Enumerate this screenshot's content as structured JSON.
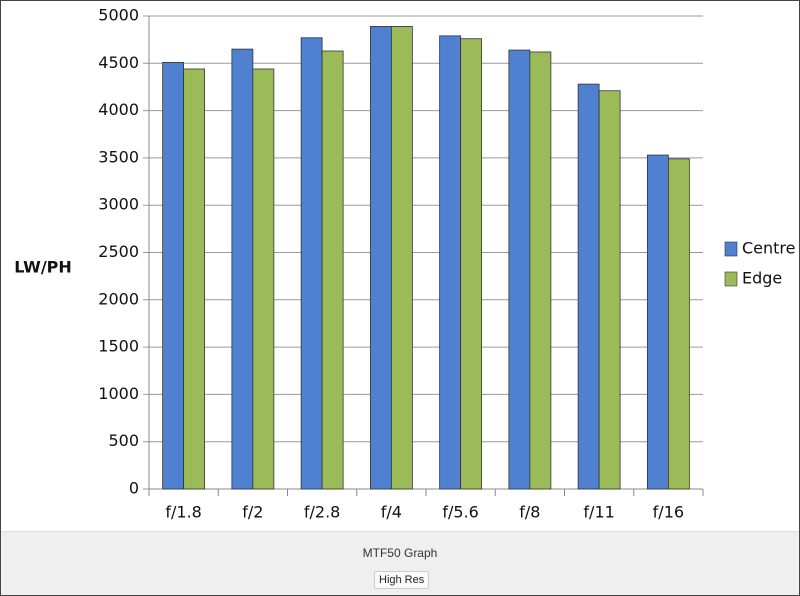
{
  "chart_data": {
    "type": "bar",
    "y_label": "LW/PH",
    "categories": [
      "f/1.8",
      "f/2",
      "f/2.8",
      "f/4",
      "f/5.6",
      "f/8",
      "f/11",
      "f/16"
    ],
    "series": [
      {
        "name": "Centre",
        "color": "#4f81d0",
        "values": [
          4510,
          4650,
          4770,
          4890,
          4790,
          4640,
          4280,
          3530
        ]
      },
      {
        "name": "Edge",
        "color": "#9bbb59",
        "values": [
          4440,
          4440,
          4630,
          4890,
          4760,
          4620,
          4210,
          3490
        ]
      }
    ],
    "ylim": [
      0,
      5000
    ],
    "yticks": [
      0,
      500,
      1000,
      1500,
      2000,
      2500,
      3000,
      3500,
      4000,
      4500,
      5000
    ],
    "grid": true,
    "legend": "right"
  },
  "caption": "MTF50 Graph",
  "button": "High Res"
}
